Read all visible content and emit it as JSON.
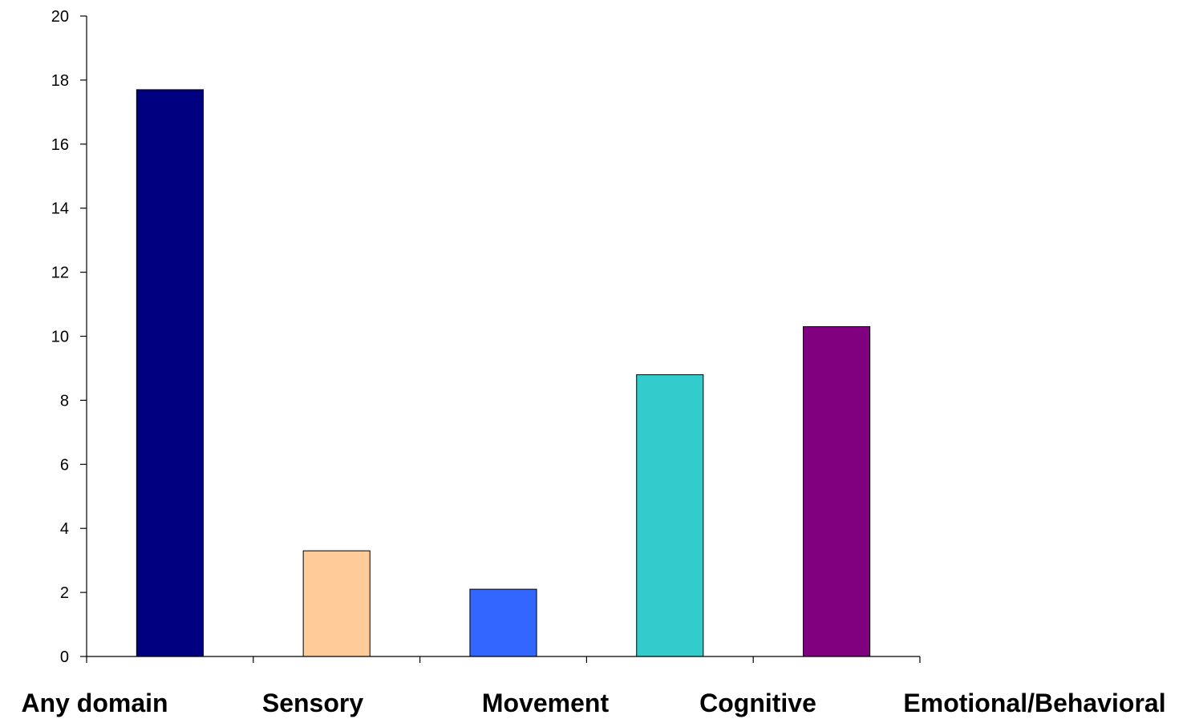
{
  "chart_data": {
    "type": "bar",
    "title": "",
    "xlabel": "",
    "ylabel": "",
    "categories": [
      "Any domain",
      "Sensory",
      "Movement",
      "Cognitive",
      "Emotional/Behavioral"
    ],
    "values": [
      17.7,
      3.3,
      2.1,
      8.8,
      10.3
    ],
    "colors": [
      "#000080",
      "#FFCC99",
      "#3366FF",
      "#33CCCC",
      "#800080"
    ],
    "ylim": [
      0,
      20
    ],
    "yticks": [
      0,
      2,
      4,
      6,
      8,
      10,
      12,
      14,
      16,
      18,
      20
    ],
    "grid": false,
    "legend": "none"
  }
}
